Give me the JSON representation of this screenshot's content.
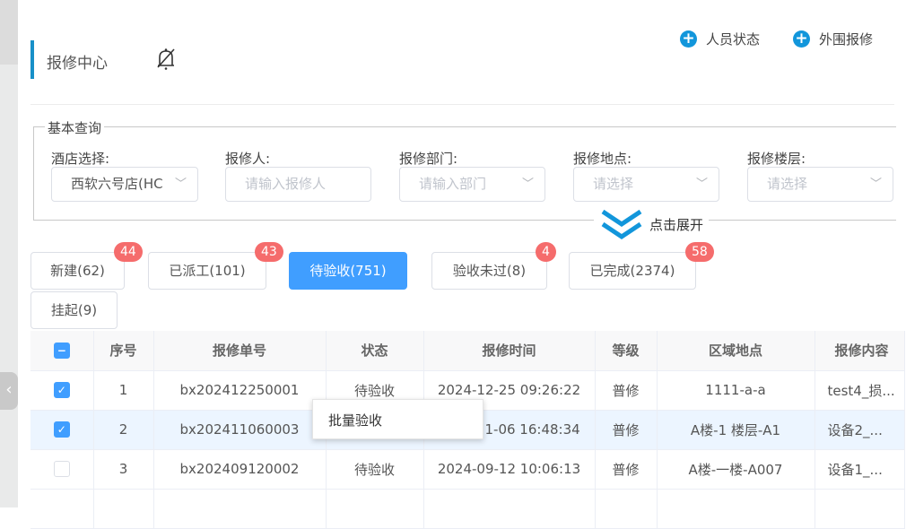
{
  "header": {
    "title": "报修中心",
    "actions": [
      {
        "label": "人员状态",
        "icon": "plus-circle-icon"
      },
      {
        "label": "外围报修",
        "icon": "plus-circle-icon"
      }
    ]
  },
  "filters": {
    "legend": "基本查询",
    "fields": [
      {
        "label": "酒店选择:",
        "value": "西软六号店(HC",
        "placeholder": ""
      },
      {
        "label": "报修人:",
        "value": "",
        "placeholder": "请输入报修人"
      },
      {
        "label": "报修部门:",
        "value": "",
        "placeholder": "请输入部门"
      },
      {
        "label": "报修地点:",
        "value": "",
        "placeholder": "请选择"
      },
      {
        "label": "报修楼层:",
        "value": "",
        "placeholder": "请选择"
      }
    ],
    "expand_label": "点击展开"
  },
  "status_tabs": [
    {
      "label": "新建(62)",
      "badge": "44"
    },
    {
      "label": "已派工(101)",
      "badge": "43"
    },
    {
      "label": "待验收(751)",
      "badge": "",
      "active": true
    },
    {
      "label": "验收未过(8)",
      "badge": "4"
    },
    {
      "label": "已完成(2374)",
      "badge": "58"
    },
    {
      "label": "挂起(9)",
      "badge": ""
    }
  ],
  "colors": {
    "accent": "#409eff",
    "badge": "#f56c6c",
    "title_bar": "#1890c8"
  },
  "table": {
    "columns": [
      "序号",
      "报修单号",
      "状态",
      "报修时间",
      "等级",
      "区域地点",
      "报修内容"
    ],
    "rows": [
      {
        "checked": true,
        "cells": [
          "1",
          "bx202412250001",
          "待验收",
          "2024-12-25 09:26:22",
          "普修",
          "1111-a-a",
          "test4_损..."
        ]
      },
      {
        "checked": true,
        "cells": [
          "2",
          "bx202411060003",
          "",
          "1-06 16:48:34",
          "普修",
          "A楼-1 楼层-A1",
          "设备2_..."
        ]
      },
      {
        "checked": false,
        "cells": [
          "3",
          "bx202409120002",
          "待验收",
          "2024-09-12 10:06:13",
          "普修",
          "A楼-一楼-A007",
          "设备1_..."
        ]
      }
    ]
  },
  "context_menu": {
    "items": [
      "批量验收"
    ]
  }
}
